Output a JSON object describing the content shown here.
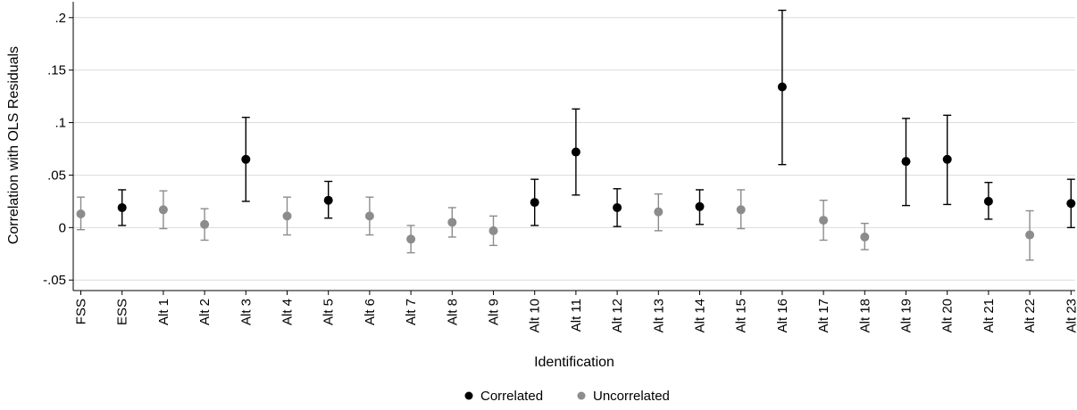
{
  "chart_data": {
    "type": "scatter",
    "title": "",
    "xlabel": "Identification",
    "ylabel": "Correlation with OLS Residuals",
    "ylim": [
      -0.06,
      0.21
    ],
    "yticks": [
      -0.05,
      0,
      0.05,
      0.1,
      0.15,
      0.2
    ],
    "ytick_labels": [
      "-.05",
      "0",
      ".05",
      ".1",
      ".15",
      ".2"
    ],
    "grid": true,
    "legend_position": "bottom",
    "categories": [
      "FSS",
      "ESS",
      "Alt 1",
      "Alt 2",
      "Alt 3",
      "Alt 4",
      "Alt 5",
      "Alt 6",
      "Alt 7",
      "Alt 8",
      "Alt 9",
      "Alt 10",
      "Alt 11",
      "Alt 12",
      "Alt 13",
      "Alt 14",
      "Alt 15",
      "Alt 16",
      "Alt 17",
      "Alt 18",
      "Alt 19",
      "Alt 20",
      "Alt 21",
      "Alt 22",
      "Alt 23"
    ],
    "estimate": [
      0.013,
      0.019,
      0.017,
      0.003,
      0.065,
      0.011,
      0.026,
      0.011,
      -0.011,
      0.005,
      -0.003,
      0.024,
      0.072,
      0.019,
      0.015,
      0.02,
      0.017,
      0.134,
      0.007,
      -0.009,
      0.063,
      0.065,
      0.025,
      -0.007,
      0.023
    ],
    "lower": [
      -0.002,
      0.002,
      -0.001,
      -0.012,
      0.025,
      -0.007,
      0.009,
      -0.007,
      -0.024,
      -0.009,
      -0.017,
      0.002,
      0.031,
      0.001,
      -0.003,
      0.003,
      -0.001,
      0.06,
      -0.012,
      -0.021,
      0.021,
      0.022,
      0.008,
      -0.031,
      0.0
    ],
    "upper": [
      0.029,
      0.036,
      0.035,
      0.018,
      0.105,
      0.029,
      0.044,
      0.029,
      0.002,
      0.019,
      0.011,
      0.046,
      0.113,
      0.037,
      0.032,
      0.036,
      0.036,
      0.207,
      0.026,
      0.004,
      0.104,
      0.107,
      0.043,
      0.016,
      0.046
    ],
    "group": [
      "Uncorrelated",
      "Correlated",
      "Uncorrelated",
      "Uncorrelated",
      "Correlated",
      "Uncorrelated",
      "Correlated",
      "Uncorrelated",
      "Uncorrelated",
      "Uncorrelated",
      "Uncorrelated",
      "Correlated",
      "Correlated",
      "Correlated",
      "Uncorrelated",
      "Correlated",
      "Uncorrelated",
      "Correlated",
      "Uncorrelated",
      "Uncorrelated",
      "Correlated",
      "Correlated",
      "Correlated",
      "Uncorrelated",
      "Correlated"
    ],
    "series": [
      {
        "name": "Correlated",
        "color": "#000000"
      },
      {
        "name": "Uncorrelated",
        "color": "#8c8c8c"
      }
    ]
  }
}
